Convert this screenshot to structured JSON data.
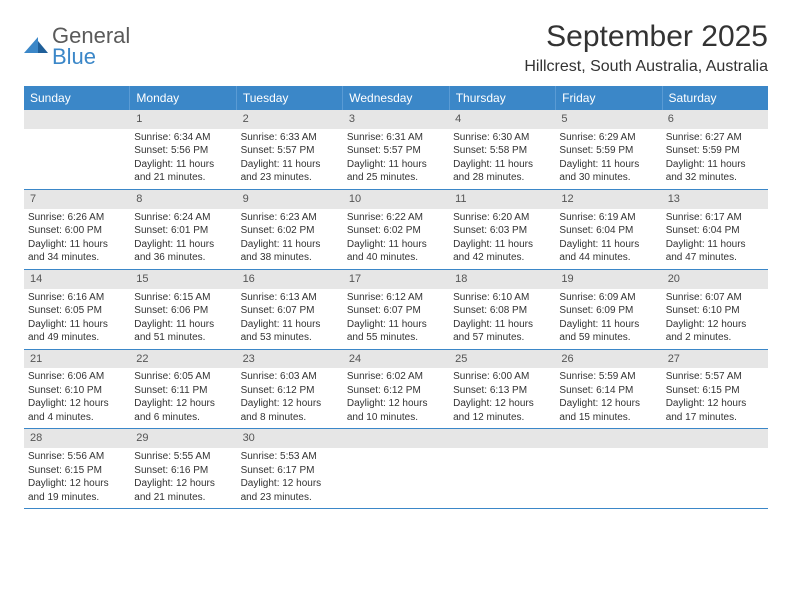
{
  "logo": {
    "general": "General",
    "blue": "Blue"
  },
  "title": "September 2025",
  "location": "Hillcrest, South Australia, Australia",
  "weekdays": [
    "Sunday",
    "Monday",
    "Tuesday",
    "Wednesday",
    "Thursday",
    "Friday",
    "Saturday"
  ],
  "colors": {
    "header_bg": "#3b87c8",
    "header_text": "#ffffff",
    "daynum_bg": "#e6e6e6",
    "row_border": "#3b87c8",
    "body_text": "#333333"
  },
  "weeks": [
    [
      {
        "num": "",
        "sunrise": "",
        "sunset": "",
        "daylight": ""
      },
      {
        "num": "1",
        "sunrise": "Sunrise: 6:34 AM",
        "sunset": "Sunset: 5:56 PM",
        "daylight": "Daylight: 11 hours and 21 minutes."
      },
      {
        "num": "2",
        "sunrise": "Sunrise: 6:33 AM",
        "sunset": "Sunset: 5:57 PM",
        "daylight": "Daylight: 11 hours and 23 minutes."
      },
      {
        "num": "3",
        "sunrise": "Sunrise: 6:31 AM",
        "sunset": "Sunset: 5:57 PM",
        "daylight": "Daylight: 11 hours and 25 minutes."
      },
      {
        "num": "4",
        "sunrise": "Sunrise: 6:30 AM",
        "sunset": "Sunset: 5:58 PM",
        "daylight": "Daylight: 11 hours and 28 minutes."
      },
      {
        "num": "5",
        "sunrise": "Sunrise: 6:29 AM",
        "sunset": "Sunset: 5:59 PM",
        "daylight": "Daylight: 11 hours and 30 minutes."
      },
      {
        "num": "6",
        "sunrise": "Sunrise: 6:27 AM",
        "sunset": "Sunset: 5:59 PM",
        "daylight": "Daylight: 11 hours and 32 minutes."
      }
    ],
    [
      {
        "num": "7",
        "sunrise": "Sunrise: 6:26 AM",
        "sunset": "Sunset: 6:00 PM",
        "daylight": "Daylight: 11 hours and 34 minutes."
      },
      {
        "num": "8",
        "sunrise": "Sunrise: 6:24 AM",
        "sunset": "Sunset: 6:01 PM",
        "daylight": "Daylight: 11 hours and 36 minutes."
      },
      {
        "num": "9",
        "sunrise": "Sunrise: 6:23 AM",
        "sunset": "Sunset: 6:02 PM",
        "daylight": "Daylight: 11 hours and 38 minutes."
      },
      {
        "num": "10",
        "sunrise": "Sunrise: 6:22 AM",
        "sunset": "Sunset: 6:02 PM",
        "daylight": "Daylight: 11 hours and 40 minutes."
      },
      {
        "num": "11",
        "sunrise": "Sunrise: 6:20 AM",
        "sunset": "Sunset: 6:03 PM",
        "daylight": "Daylight: 11 hours and 42 minutes."
      },
      {
        "num": "12",
        "sunrise": "Sunrise: 6:19 AM",
        "sunset": "Sunset: 6:04 PM",
        "daylight": "Daylight: 11 hours and 44 minutes."
      },
      {
        "num": "13",
        "sunrise": "Sunrise: 6:17 AM",
        "sunset": "Sunset: 6:04 PM",
        "daylight": "Daylight: 11 hours and 47 minutes."
      }
    ],
    [
      {
        "num": "14",
        "sunrise": "Sunrise: 6:16 AM",
        "sunset": "Sunset: 6:05 PM",
        "daylight": "Daylight: 11 hours and 49 minutes."
      },
      {
        "num": "15",
        "sunrise": "Sunrise: 6:15 AM",
        "sunset": "Sunset: 6:06 PM",
        "daylight": "Daylight: 11 hours and 51 minutes."
      },
      {
        "num": "16",
        "sunrise": "Sunrise: 6:13 AM",
        "sunset": "Sunset: 6:07 PM",
        "daylight": "Daylight: 11 hours and 53 minutes."
      },
      {
        "num": "17",
        "sunrise": "Sunrise: 6:12 AM",
        "sunset": "Sunset: 6:07 PM",
        "daylight": "Daylight: 11 hours and 55 minutes."
      },
      {
        "num": "18",
        "sunrise": "Sunrise: 6:10 AM",
        "sunset": "Sunset: 6:08 PM",
        "daylight": "Daylight: 11 hours and 57 minutes."
      },
      {
        "num": "19",
        "sunrise": "Sunrise: 6:09 AM",
        "sunset": "Sunset: 6:09 PM",
        "daylight": "Daylight: 11 hours and 59 minutes."
      },
      {
        "num": "20",
        "sunrise": "Sunrise: 6:07 AM",
        "sunset": "Sunset: 6:10 PM",
        "daylight": "Daylight: 12 hours and 2 minutes."
      }
    ],
    [
      {
        "num": "21",
        "sunrise": "Sunrise: 6:06 AM",
        "sunset": "Sunset: 6:10 PM",
        "daylight": "Daylight: 12 hours and 4 minutes."
      },
      {
        "num": "22",
        "sunrise": "Sunrise: 6:05 AM",
        "sunset": "Sunset: 6:11 PM",
        "daylight": "Daylight: 12 hours and 6 minutes."
      },
      {
        "num": "23",
        "sunrise": "Sunrise: 6:03 AM",
        "sunset": "Sunset: 6:12 PM",
        "daylight": "Daylight: 12 hours and 8 minutes."
      },
      {
        "num": "24",
        "sunrise": "Sunrise: 6:02 AM",
        "sunset": "Sunset: 6:12 PM",
        "daylight": "Daylight: 12 hours and 10 minutes."
      },
      {
        "num": "25",
        "sunrise": "Sunrise: 6:00 AM",
        "sunset": "Sunset: 6:13 PM",
        "daylight": "Daylight: 12 hours and 12 minutes."
      },
      {
        "num": "26",
        "sunrise": "Sunrise: 5:59 AM",
        "sunset": "Sunset: 6:14 PM",
        "daylight": "Daylight: 12 hours and 15 minutes."
      },
      {
        "num": "27",
        "sunrise": "Sunrise: 5:57 AM",
        "sunset": "Sunset: 6:15 PM",
        "daylight": "Daylight: 12 hours and 17 minutes."
      }
    ],
    [
      {
        "num": "28",
        "sunrise": "Sunrise: 5:56 AM",
        "sunset": "Sunset: 6:15 PM",
        "daylight": "Daylight: 12 hours and 19 minutes."
      },
      {
        "num": "29",
        "sunrise": "Sunrise: 5:55 AM",
        "sunset": "Sunset: 6:16 PM",
        "daylight": "Daylight: 12 hours and 21 minutes."
      },
      {
        "num": "30",
        "sunrise": "Sunrise: 5:53 AM",
        "sunset": "Sunset: 6:17 PM",
        "daylight": "Daylight: 12 hours and 23 minutes."
      },
      {
        "num": "",
        "sunrise": "",
        "sunset": "",
        "daylight": ""
      },
      {
        "num": "",
        "sunrise": "",
        "sunset": "",
        "daylight": ""
      },
      {
        "num": "",
        "sunrise": "",
        "sunset": "",
        "daylight": ""
      },
      {
        "num": "",
        "sunrise": "",
        "sunset": "",
        "daylight": ""
      }
    ]
  ]
}
